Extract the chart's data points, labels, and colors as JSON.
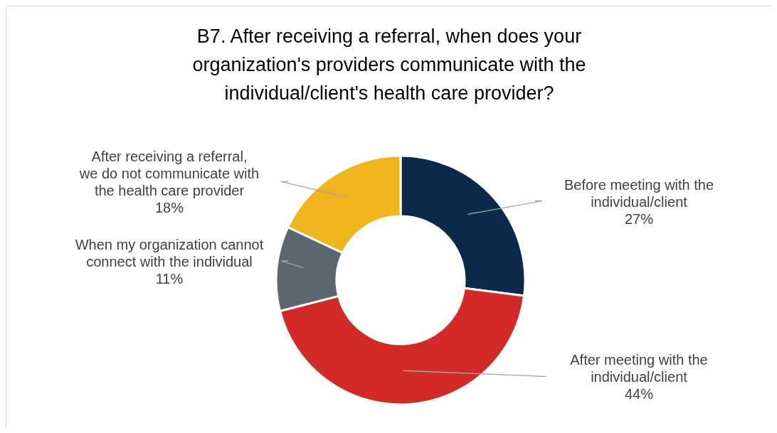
{
  "chart_data": {
    "type": "donut",
    "title": "B7. After receiving a referral, when does your organization's providers communicate with the individual/client's health care provider?",
    "categories": [
      "Before meeting with the individual/client",
      "After meeting with the individual/client",
      "When my organization cannot connect with the individual",
      "After receiving a referral, we do not communicate with the health care provider"
    ],
    "values": [
      27,
      44,
      11,
      18
    ],
    "colors": [
      "#0b2a4a",
      "#d22b27",
      "#5a6670",
      "#f0b41c"
    ],
    "value_labels": [
      "27%",
      "44%",
      "11%",
      "18%"
    ],
    "legend": false
  }
}
